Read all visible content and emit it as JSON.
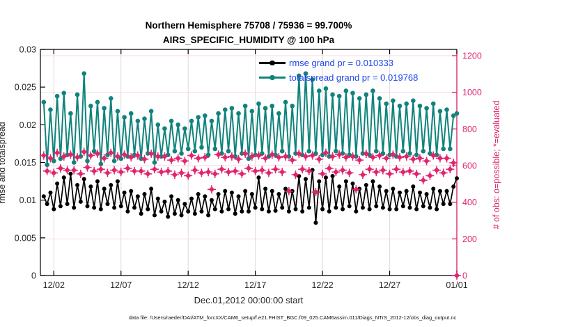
{
  "header": {
    "title_line1": "Northern Hemisphere 75708 / 75936 = 99.700%",
    "title_line2": "AIRS_SPECIFIC_HUMIDITY @ 100 hPa"
  },
  "legend": {
    "rmse_label": "rmse grand pr = 0.010333",
    "totalspread_label": "totalspread grand pr = 0.019768"
  },
  "axes": {
    "left_label": "rmse and totalspread",
    "right_label": "# of obs: o=possible; *=evaluated",
    "x_label": "Dec.01,2012 00:00:00 start",
    "left_tick_values": [
      0,
      0.005,
      0.01,
      0.015,
      0.02,
      0.025,
      0.03
    ],
    "left_tick_labels": [
      "0",
      "0.005",
      "0.01",
      "0.015",
      "0.02",
      "0.025",
      "0.03"
    ],
    "right_tick_values": [
      0,
      200,
      400,
      600,
      800,
      1000,
      1200
    ],
    "right_tick_labels": [
      "0",
      "200",
      "400",
      "600",
      "800",
      "1000",
      "1200"
    ],
    "x_tick_days": [
      1,
      6,
      11,
      16,
      21,
      26,
      31
    ],
    "x_tick_labels": [
      "12/02",
      "12/07",
      "12/12",
      "12/17",
      "12/22",
      "12/27",
      "01/01"
    ]
  },
  "footer": {
    "data_file": "data file: /Users/raeder/DAI/ATM_forcXX/CAM6_setup/f.e21.FHIST_BGC.f09_025.CAM6assim.011/Diags_NTrS_2012-12/obs_diag_output.nc"
  },
  "colors": {
    "rmse": "#000000",
    "totalspread": "#0f837c",
    "obs": "#e1246e",
    "legend_text": "#2045ee",
    "grid_h": "#f6d9e4",
    "grid_v": "#dcdcdc",
    "axis": "#000000",
    "tick_text": "#262626"
  },
  "chart_data": {
    "type": "line",
    "title": "Northern Hemisphere 75708 / 75936 = 99.700% — AIRS_SPECIFIC_HUMIDITY @ 100 hPa",
    "x_axis": {
      "unit": "days since Dec.01,2012 00:00:00",
      "start": 0.25,
      "step": 0.25,
      "range": [
        0,
        31
      ]
    },
    "left_ylim": [
      0,
      0.03
    ],
    "right_ylim": [
      0,
      1200
    ],
    "grid": "on",
    "legend_position": "top-center-inside",
    "series": [
      {
        "name": "rmse",
        "axis": "left",
        "color": "#000000",
        "marker": "circle",
        "line": true,
        "grand_mean": 0.010333,
        "values": [
          0.0105,
          0.0095,
          0.011,
          0.0088,
          0.0122,
          0.0092,
          0.013,
          0.0095,
          0.0135,
          0.009,
          0.012,
          0.0098,
          0.0128,
          0.0092,
          0.0118,
          0.009,
          0.0125,
          0.0088,
          0.0115,
          0.0095,
          0.012,
          0.009,
          0.0125,
          0.0092,
          0.011,
          0.0085,
          0.0112,
          0.009,
          0.0105,
          0.0082,
          0.0108,
          0.0088,
          0.0115,
          0.008,
          0.0102,
          0.0085,
          0.0098,
          0.0078,
          0.0105,
          0.0082,
          0.01,
          0.008,
          0.0095,
          0.0085,
          0.0102,
          0.0082,
          0.0108,
          0.0085,
          0.0105,
          0.008,
          0.01,
          0.0088,
          0.0108,
          0.0085,
          0.0112,
          0.0088,
          0.011,
          0.0082,
          0.0105,
          0.0085,
          0.0112,
          0.0085,
          0.0108,
          0.009,
          0.013,
          0.0088,
          0.0115,
          0.0085,
          0.0112,
          0.0086,
          0.0108,
          0.009,
          0.0115,
          0.0085,
          0.0112,
          0.0088,
          0.0132,
          0.0085,
          0.0128,
          0.009,
          0.014,
          0.007,
          0.0125,
          0.0088,
          0.013,
          0.0085,
          0.0132,
          0.009,
          0.0118,
          0.0088,
          0.0125,
          0.0092,
          0.0122,
          0.0085,
          0.0115,
          0.009,
          0.012,
          0.0088,
          0.0125,
          0.0092,
          0.0118,
          0.009,
          0.0112,
          0.0088,
          0.0115,
          0.0088,
          0.011,
          0.0092,
          0.0112,
          0.009,
          0.0118,
          0.0088,
          0.011,
          0.0092,
          0.0108,
          0.009,
          0.0115,
          0.0088,
          0.0112,
          0.0095,
          0.0112,
          0.0095,
          0.0118,
          0.0129
        ]
      },
      {
        "name": "totalspread",
        "axis": "left",
        "color": "#0f837c",
        "marker": "circle",
        "line": true,
        "grand_mean": 0.019768,
        "values": [
          0.023,
          0.0147,
          0.022,
          0.0152,
          0.0238,
          0.0155,
          0.0242,
          0.016,
          0.0215,
          0.015,
          0.024,
          0.0158,
          0.0268,
          0.0152,
          0.0225,
          0.0165,
          0.023,
          0.0148,
          0.0222,
          0.016,
          0.0235,
          0.0152,
          0.0218,
          0.0155,
          0.021,
          0.0158,
          0.0215,
          0.016,
          0.0205,
          0.0155,
          0.0208,
          0.0162,
          0.0218,
          0.015,
          0.02,
          0.0158,
          0.0195,
          0.016,
          0.0205,
          0.0165,
          0.02,
          0.0162,
          0.0195,
          0.0168,
          0.0205,
          0.0165,
          0.021,
          0.017,
          0.0212,
          0.016,
          0.0205,
          0.0168,
          0.0215,
          0.0162,
          0.022,
          0.0165,
          0.0222,
          0.0158,
          0.0215,
          0.0162,
          0.0225,
          0.0155,
          0.0218,
          0.016,
          0.0228,
          0.0162,
          0.0222,
          0.0158,
          0.0225,
          0.016,
          0.0215,
          0.0165,
          0.023,
          0.0158,
          0.0225,
          0.0162,
          0.0265,
          0.016,
          0.0268,
          0.0165,
          0.026,
          0.0162,
          0.0245,
          0.016,
          0.0248,
          0.0158,
          0.024,
          0.0165,
          0.0238,
          0.0162,
          0.0245,
          0.016,
          0.0242,
          0.0158,
          0.0235,
          0.0162,
          0.024,
          0.016,
          0.0245,
          0.0165,
          0.0235,
          0.0162,
          0.0228,
          0.016,
          0.0232,
          0.0158,
          0.0225,
          0.0165,
          0.0228,
          0.0162,
          0.0232,
          0.016,
          0.0225,
          0.0165,
          0.0222,
          0.0162,
          0.0228,
          0.016,
          0.0218,
          0.0168,
          0.022,
          0.0168,
          0.0212,
          0.0215
        ]
      },
      {
        "name": "obs_count (o=possible, *=evaluated overlap, 99.7% evaluated)",
        "axis": "right",
        "color": "#e1246e",
        "marker": "diamond-asterisk",
        "line": false,
        "values": [
          655,
          570,
          640,
          560,
          670,
          585,
          650,
          575,
          660,
          575,
          645,
          555,
          675,
          590,
          655,
          570,
          665,
          580,
          640,
          560,
          670,
          575,
          650,
          565,
          660,
          585,
          645,
          570,
          655,
          570,
          635,
          555,
          665,
          580,
          650,
          565,
          650,
          570,
          630,
          550,
          640,
          560,
          625,
          545,
          655,
          575,
          640,
          560,
          645,
          565,
          470,
          555,
          660,
          580,
          645,
          565,
          650,
          570,
          635,
          555,
          665,
          585,
          650,
          570,
          655,
          575,
          640,
          560,
          660,
          580,
          645,
          565,
          650,
          460,
          630,
          550,
          665,
          580,
          650,
          570,
          655,
          455,
          635,
          555,
          670,
          585,
          650,
          565,
          660,
          575,
          645,
          560,
          650,
          470,
          630,
          550,
          665,
          580,
          645,
          565,
          655,
          575,
          640,
          555,
          660,
          580,
          645,
          565,
          650,
          570,
          635,
          555,
          640,
          520,
          625,
          545,
          655,
          575,
          640,
          560,
          640,
          580,
          615,
          0
        ]
      }
    ]
  }
}
